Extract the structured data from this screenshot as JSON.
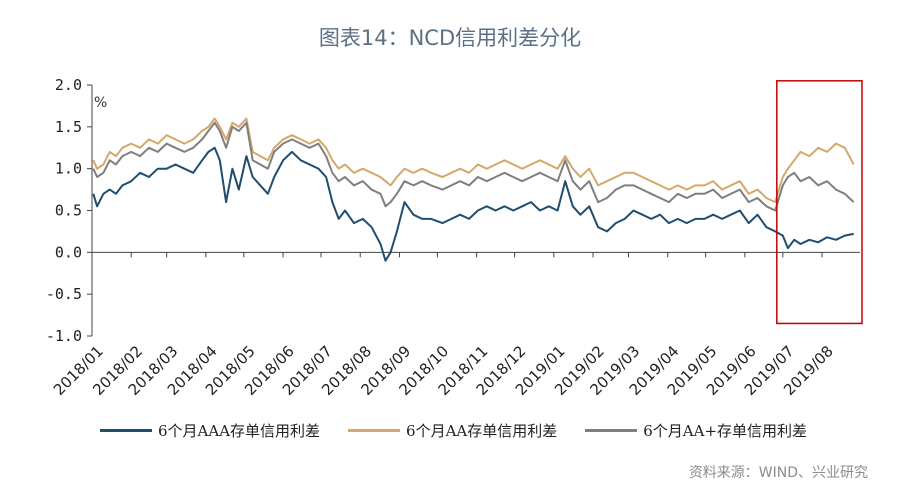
{
  "title": "图表14：NCD信用利差分化",
  "source": "资料来源：WIND、兴业研究",
  "colors": {
    "aaa": "#1f4e6e",
    "aa": "#d4a86a",
    "aa_plus": "#7f7f7f",
    "highlight": "#c00000",
    "axis": "#444444"
  },
  "chart_data": {
    "type": "line",
    "unit": "%",
    "ylim": [
      -1.0,
      2.0
    ],
    "yticks": [
      "2.0",
      "1.5",
      "1.0",
      "0.5",
      "0.0",
      "-0.5",
      "-1.0"
    ],
    "xticks": [
      "2018/01",
      "2018/02",
      "2018/03",
      "2018/04",
      "2018/05",
      "2018/06",
      "2018/07",
      "2018/08",
      "2018/09",
      "2018/10",
      "2018/11",
      "2018/12",
      "2019/01",
      "2019/02",
      "2019/03",
      "2019/04",
      "2019/05",
      "2019/06",
      "2019/07",
      "2019/08"
    ],
    "highlight": {
      "from": "2019/07",
      "to": "2019/08",
      "ymin": -0.85,
      "ymax": 2.05
    },
    "series": [
      {
        "name": "6个月AAA存单信用利差",
        "color": "#1f4e6e",
        "x": [
          "2018-01-02",
          "2018-01-05",
          "2018-01-10",
          "2018-01-15",
          "2018-01-20",
          "2018-01-25",
          "2018-02-01",
          "2018-02-08",
          "2018-02-15",
          "2018-02-22",
          "2018-03-01",
          "2018-03-08",
          "2018-03-15",
          "2018-03-22",
          "2018-03-29",
          "2018-04-03",
          "2018-04-08",
          "2018-04-12",
          "2018-04-17",
          "2018-04-22",
          "2018-04-27",
          "2018-05-03",
          "2018-05-08",
          "2018-05-14",
          "2018-05-20",
          "2018-05-25",
          "2018-06-01",
          "2018-06-08",
          "2018-06-15",
          "2018-06-22",
          "2018-06-29",
          "2018-07-05",
          "2018-07-10",
          "2018-07-15",
          "2018-07-20",
          "2018-07-27",
          "2018-08-03",
          "2018-08-10",
          "2018-08-17",
          "2018-08-21",
          "2018-08-25",
          "2018-08-30",
          "2018-09-05",
          "2018-09-12",
          "2018-09-19",
          "2018-09-26",
          "2018-10-05",
          "2018-10-12",
          "2018-10-19",
          "2018-10-26",
          "2018-11-02",
          "2018-11-09",
          "2018-11-16",
          "2018-11-23",
          "2018-11-30",
          "2018-12-07",
          "2018-12-14",
          "2018-12-21",
          "2018-12-28",
          "2019-01-04",
          "2019-01-10",
          "2019-01-16",
          "2019-01-22",
          "2019-01-29",
          "2019-02-05",
          "2019-02-12",
          "2019-02-19",
          "2019-02-26",
          "2019-03-05",
          "2019-03-12",
          "2019-03-19",
          "2019-03-26",
          "2019-04-02",
          "2019-04-09",
          "2019-04-16",
          "2019-04-23",
          "2019-04-30",
          "2019-05-07",
          "2019-05-14",
          "2019-05-21",
          "2019-05-28",
          "2019-06-04",
          "2019-06-11",
          "2019-06-18",
          "2019-06-25",
          "2019-07-01",
          "2019-07-05",
          "2019-07-10",
          "2019-07-15",
          "2019-07-22",
          "2019-07-29",
          "2019-08-05",
          "2019-08-12",
          "2019-08-19",
          "2019-08-26"
        ],
        "y": [
          0.7,
          0.55,
          0.7,
          0.75,
          0.7,
          0.8,
          0.85,
          0.95,
          0.9,
          1.0,
          1.0,
          1.05,
          1.0,
          0.95,
          1.1,
          1.2,
          1.25,
          1.1,
          0.6,
          1.0,
          0.75,
          1.15,
          0.9,
          0.8,
          0.7,
          0.9,
          1.1,
          1.2,
          1.1,
          1.05,
          1.0,
          0.9,
          0.6,
          0.4,
          0.5,
          0.35,
          0.4,
          0.3,
          0.1,
          -0.1,
          0.0,
          0.25,
          0.6,
          0.45,
          0.4,
          0.4,
          0.35,
          0.4,
          0.45,
          0.4,
          0.5,
          0.55,
          0.5,
          0.55,
          0.5,
          0.55,
          0.6,
          0.5,
          0.55,
          0.5,
          0.85,
          0.55,
          0.45,
          0.55,
          0.3,
          0.25,
          0.35,
          0.4,
          0.5,
          0.45,
          0.4,
          0.45,
          0.35,
          0.4,
          0.35,
          0.4,
          0.4,
          0.45,
          0.4,
          0.45,
          0.5,
          0.35,
          0.45,
          0.3,
          0.25,
          0.2,
          0.05,
          0.15,
          0.1,
          0.15,
          0.12,
          0.18,
          0.15,
          0.2,
          0.22
        ]
      },
      {
        "name": "6个月AA存单信用利差",
        "color": "#d4a86a",
        "x": [
          "2018-01-02",
          "2018-01-05",
          "2018-01-10",
          "2018-01-15",
          "2018-01-20",
          "2018-01-25",
          "2018-02-01",
          "2018-02-08",
          "2018-02-15",
          "2018-02-22",
          "2018-03-01",
          "2018-03-08",
          "2018-03-15",
          "2018-03-22",
          "2018-03-29",
          "2018-04-03",
          "2018-04-08",
          "2018-04-12",
          "2018-04-17",
          "2018-04-22",
          "2018-04-27",
          "2018-05-03",
          "2018-05-08",
          "2018-05-14",
          "2018-05-20",
          "2018-05-25",
          "2018-06-01",
          "2018-06-08",
          "2018-06-15",
          "2018-06-22",
          "2018-06-29",
          "2018-07-05",
          "2018-07-10",
          "2018-07-15",
          "2018-07-20",
          "2018-07-27",
          "2018-08-03",
          "2018-08-10",
          "2018-08-17",
          "2018-08-21",
          "2018-08-25",
          "2018-08-30",
          "2018-09-05",
          "2018-09-12",
          "2018-09-19",
          "2018-09-26",
          "2018-10-05",
          "2018-10-12",
          "2018-10-19",
          "2018-10-26",
          "2018-11-02",
          "2018-11-09",
          "2018-11-16",
          "2018-11-23",
          "2018-11-30",
          "2018-12-07",
          "2018-12-14",
          "2018-12-21",
          "2018-12-28",
          "2019-01-04",
          "2019-01-10",
          "2019-01-16",
          "2019-01-22",
          "2019-01-29",
          "2019-02-05",
          "2019-02-12",
          "2019-02-19",
          "2019-02-26",
          "2019-03-05",
          "2019-03-12",
          "2019-03-19",
          "2019-03-26",
          "2019-04-02",
          "2019-04-09",
          "2019-04-16",
          "2019-04-23",
          "2019-04-30",
          "2019-05-07",
          "2019-05-14",
          "2019-05-21",
          "2019-05-28",
          "2019-06-04",
          "2019-06-11",
          "2019-06-18",
          "2019-06-25",
          "2019-07-01",
          "2019-07-05",
          "2019-07-10",
          "2019-07-15",
          "2019-07-22",
          "2019-07-29",
          "2019-08-05",
          "2019-08-12",
          "2019-08-19",
          "2019-08-26"
        ],
        "y": [
          1.1,
          1.0,
          1.05,
          1.2,
          1.15,
          1.25,
          1.3,
          1.25,
          1.35,
          1.3,
          1.4,
          1.35,
          1.3,
          1.35,
          1.45,
          1.5,
          1.6,
          1.5,
          1.35,
          1.55,
          1.5,
          1.6,
          1.2,
          1.15,
          1.1,
          1.25,
          1.35,
          1.4,
          1.35,
          1.3,
          1.35,
          1.25,
          1.1,
          1.0,
          1.05,
          0.95,
          1.0,
          0.95,
          0.9,
          0.85,
          0.8,
          0.9,
          1.0,
          0.95,
          1.0,
          0.95,
          0.9,
          0.95,
          1.0,
          0.95,
          1.05,
          1.0,
          1.05,
          1.1,
          1.05,
          1.0,
          1.05,
          1.1,
          1.05,
          1.0,
          1.15,
          1.0,
          0.9,
          1.0,
          0.8,
          0.85,
          0.9,
          0.95,
          0.95,
          0.9,
          0.85,
          0.8,
          0.75,
          0.8,
          0.75,
          0.8,
          0.8,
          0.85,
          0.75,
          0.8,
          0.85,
          0.7,
          0.75,
          0.65,
          0.6,
          0.9,
          1.0,
          1.1,
          1.2,
          1.15,
          1.25,
          1.2,
          1.3,
          1.25,
          1.05
        ]
      },
      {
        "name": "6个月AA+存单信用利差",
        "color": "#7f7f7f",
        "x": [
          "2018-01-02",
          "2018-01-05",
          "2018-01-10",
          "2018-01-15",
          "2018-01-20",
          "2018-01-25",
          "2018-02-01",
          "2018-02-08",
          "2018-02-15",
          "2018-02-22",
          "2018-03-01",
          "2018-03-08",
          "2018-03-15",
          "2018-03-22",
          "2018-03-29",
          "2018-04-03",
          "2018-04-08",
          "2018-04-12",
          "2018-04-17",
          "2018-04-22",
          "2018-04-27",
          "2018-05-03",
          "2018-05-08",
          "2018-05-14",
          "2018-05-20",
          "2018-05-25",
          "2018-06-01",
          "2018-06-08",
          "2018-06-15",
          "2018-06-22",
          "2018-06-29",
          "2018-07-05",
          "2018-07-10",
          "2018-07-15",
          "2018-07-20",
          "2018-07-27",
          "2018-08-03",
          "2018-08-10",
          "2018-08-17",
          "2018-08-21",
          "2018-08-25",
          "2018-08-30",
          "2018-09-05",
          "2018-09-12",
          "2018-09-19",
          "2018-09-26",
          "2018-10-05",
          "2018-10-12",
          "2018-10-19",
          "2018-10-26",
          "2018-11-02",
          "2018-11-09",
          "2018-11-16",
          "2018-11-23",
          "2018-11-30",
          "2018-12-07",
          "2018-12-14",
          "2018-12-21",
          "2018-12-28",
          "2019-01-04",
          "2019-01-10",
          "2019-01-16",
          "2019-01-22",
          "2019-01-29",
          "2019-02-05",
          "2019-02-12",
          "2019-02-19",
          "2019-02-26",
          "2019-03-05",
          "2019-03-12",
          "2019-03-19",
          "2019-03-26",
          "2019-04-02",
          "2019-04-09",
          "2019-04-16",
          "2019-04-23",
          "2019-04-30",
          "2019-05-07",
          "2019-05-14",
          "2019-05-21",
          "2019-05-28",
          "2019-06-04",
          "2019-06-11",
          "2019-06-18",
          "2019-06-25",
          "2019-07-01",
          "2019-07-05",
          "2019-07-10",
          "2019-07-15",
          "2019-07-22",
          "2019-07-29",
          "2019-08-05",
          "2019-08-12",
          "2019-08-19",
          "2019-08-26"
        ],
        "y": [
          1.0,
          0.9,
          0.95,
          1.1,
          1.05,
          1.15,
          1.2,
          1.15,
          1.25,
          1.2,
          1.3,
          1.25,
          1.2,
          1.25,
          1.35,
          1.45,
          1.55,
          1.45,
          1.25,
          1.5,
          1.45,
          1.55,
          1.1,
          1.05,
          1.0,
          1.2,
          1.3,
          1.35,
          1.3,
          1.25,
          1.3,
          1.15,
          0.95,
          0.85,
          0.9,
          0.8,
          0.85,
          0.75,
          0.7,
          0.55,
          0.6,
          0.7,
          0.85,
          0.8,
          0.85,
          0.8,
          0.75,
          0.8,
          0.85,
          0.8,
          0.9,
          0.85,
          0.9,
          0.95,
          0.9,
          0.85,
          0.9,
          0.95,
          0.9,
          0.85,
          1.1,
          0.85,
          0.75,
          0.85,
          0.6,
          0.65,
          0.75,
          0.8,
          0.8,
          0.75,
          0.7,
          0.65,
          0.6,
          0.7,
          0.65,
          0.7,
          0.7,
          0.75,
          0.65,
          0.7,
          0.75,
          0.6,
          0.65,
          0.55,
          0.5,
          0.8,
          0.9,
          0.95,
          0.85,
          0.9,
          0.8,
          0.85,
          0.75,
          0.7,
          0.6
        ]
      }
    ]
  }
}
